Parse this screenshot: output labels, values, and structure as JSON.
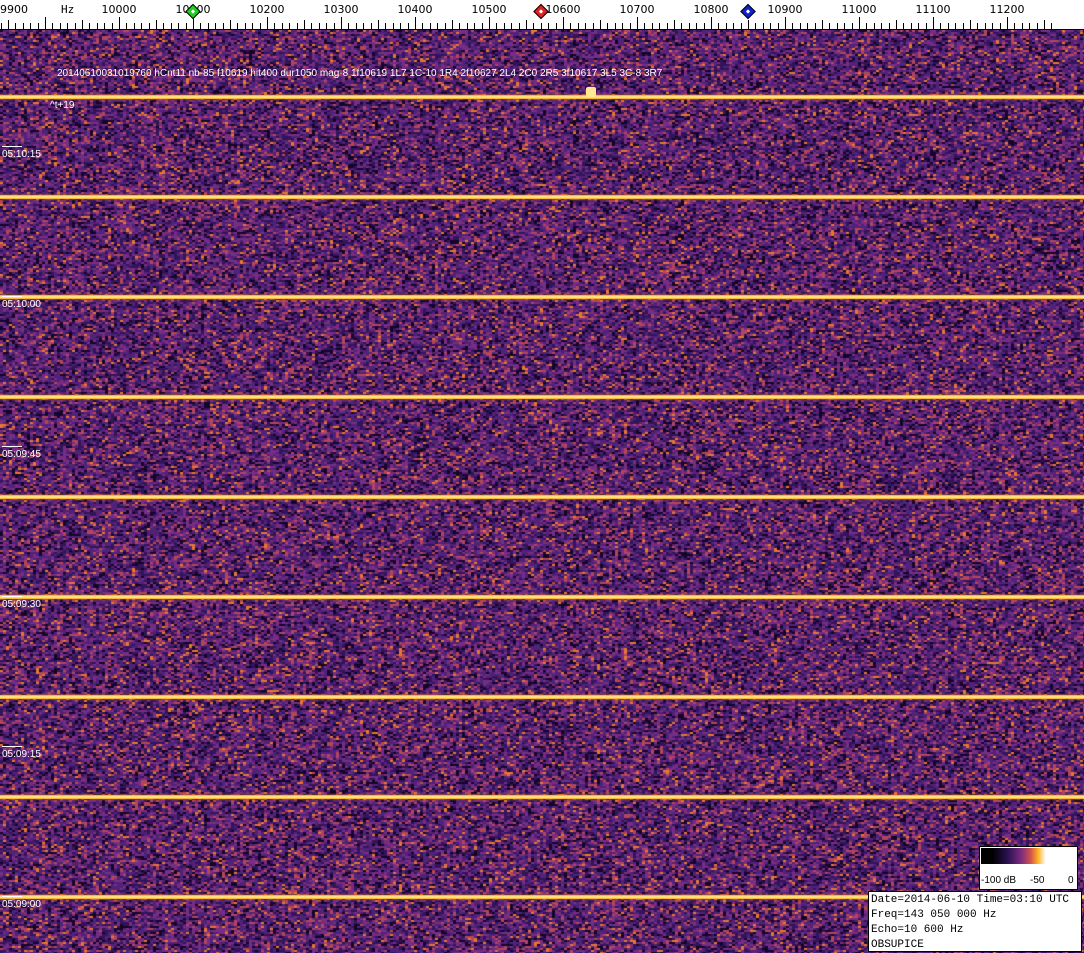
{
  "chart_data": {
    "type": "heatmap",
    "subtype": "spectrogram",
    "x_unit": "Hz",
    "x_ticks": [
      9900,
      10000,
      10100,
      10200,
      10300,
      10400,
      10500,
      10600,
      10700,
      10800,
      10900,
      11000,
      11100,
      11200
    ],
    "x_range": [
      9800,
      11260
    ],
    "y_ticks": [
      "05:10:15",
      "05:10:00",
      "05:09:45",
      "05:09:30",
      "05:09:15",
      "05:09:00"
    ],
    "markers": [
      {
        "freq": 10100,
        "color": "#22cc22"
      },
      {
        "freq": 10570,
        "color": "#dd2222"
      },
      {
        "freq": 10850,
        "color": "#1122cc"
      }
    ],
    "echo_lines_time": [
      "05:10:20.8",
      "05:10:10.8",
      "05:10:00.8",
      "05:09:50.8",
      "05:09:40.8",
      "05:09:30.8",
      "05:09:20.8",
      "05:09:10.8",
      "05:09:00.8"
    ],
    "annotation": "20140610031019760 hCnt11 nb-85 f10619 hit400 dur1050 mag-8 1f10619 1L7 1C-10 1R4 2f10627 2L4 2C0 2R5 3f10617 3L5 3C-8 3R7",
    "annotation_sub": "^t+19",
    "colorbar": {
      "labels": [
        "-100 dB",
        "-50",
        "0"
      ],
      "range_db": [
        -100,
        0
      ]
    },
    "background_color": "#5a2a78"
  },
  "info": {
    "line1": "Date=2014-06-10 Time=03:10 UTC",
    "line2": "Freq=143 050 000 Hz",
    "line3": "Echo=10 600 Hz",
    "line4": "OBSUPICE"
  },
  "axis": {
    "unit": "Hz"
  }
}
